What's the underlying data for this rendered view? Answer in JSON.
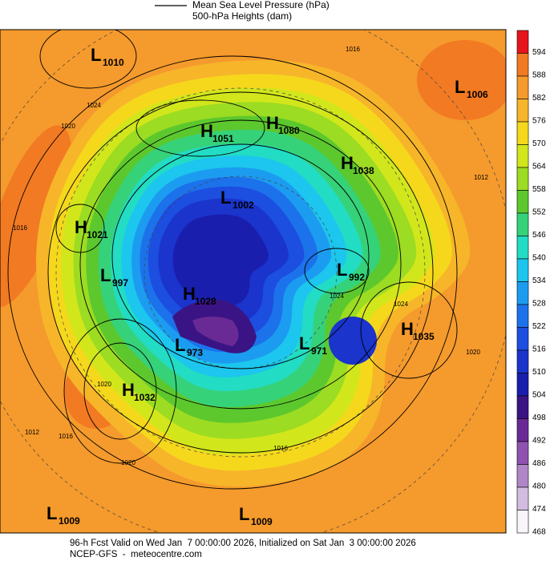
{
  "legend": {
    "line_label": "Mean Sea Level Pressure (hPa)",
    "fill_label": "500-hPa Heights (dam)"
  },
  "colorbar": {
    "levels": [
      {
        "value": 594,
        "color": "#e8141c"
      },
      {
        "value": 588,
        "color": "#f27a22"
      },
      {
        "value": 582,
        "color": "#f59a2c"
      },
      {
        "value": 576,
        "color": "#f7b52a"
      },
      {
        "value": 570,
        "color": "#f5d81c"
      },
      {
        "value": 564,
        "color": "#d2e61c"
      },
      {
        "value": 558,
        "color": "#9cdc22"
      },
      {
        "value": 552,
        "color": "#5cc82e"
      },
      {
        "value": 546,
        "color": "#36d27a"
      },
      {
        "value": 540,
        "color": "#22dcc4"
      },
      {
        "value": 534,
        "color": "#1cc6ee"
      },
      {
        "value": 528,
        "color": "#1c9cf0"
      },
      {
        "value": 522,
        "color": "#1c72ea"
      },
      {
        "value": 516,
        "color": "#1c4ee0"
      },
      {
        "value": 510,
        "color": "#1a34cc"
      },
      {
        "value": 504,
        "color": "#1a1eac"
      },
      {
        "value": 498,
        "color": "#3a1484"
      },
      {
        "value": 492,
        "color": "#6a2a96"
      },
      {
        "value": 486,
        "color": "#8e52b0"
      },
      {
        "value": 480,
        "color": "#b086c8"
      },
      {
        "value": 474,
        "color": "#d2bce0"
      },
      {
        "value": 468,
        "color": "#f8f4fa"
      }
    ]
  },
  "centers": [
    {
      "letter": "L",
      "value": 1010
    },
    {
      "letter": "H",
      "value": 1051
    },
    {
      "letter": "H",
      "value": 1080
    },
    {
      "letter": "L",
      "value": 1006
    },
    {
      "letter": "H",
      "value": 1038
    },
    {
      "letter": "L",
      "value": 1002
    },
    {
      "letter": "H",
      "value": 1021
    },
    {
      "letter": "L",
      "value": 997
    },
    {
      "letter": "H",
      "value": 1028
    },
    {
      "letter": "L",
      "value": 992
    },
    {
      "letter": "H",
      "value": 1035
    },
    {
      "letter": "L",
      "value": 973
    },
    {
      "letter": "L",
      "value": 971
    },
    {
      "letter": "H",
      "value": 1032
    },
    {
      "letter": "L",
      "value": 1009
    },
    {
      "letter": "L",
      "value": 1009
    }
  ],
  "isobar_labels": [
    1016,
    1024,
    1020,
    1016,
    1012,
    1024,
    1020,
    1016,
    1012,
    1020,
    1016,
    1024,
    1020
  ],
  "footer": {
    "line1": "96-h Fcst Valid on Wed Jan  7 00:00:00 2026, Initialized on Sat Jan  3 00:00:00 2026",
    "line2": "NCEP-GFS  -  meteocentre.com"
  }
}
